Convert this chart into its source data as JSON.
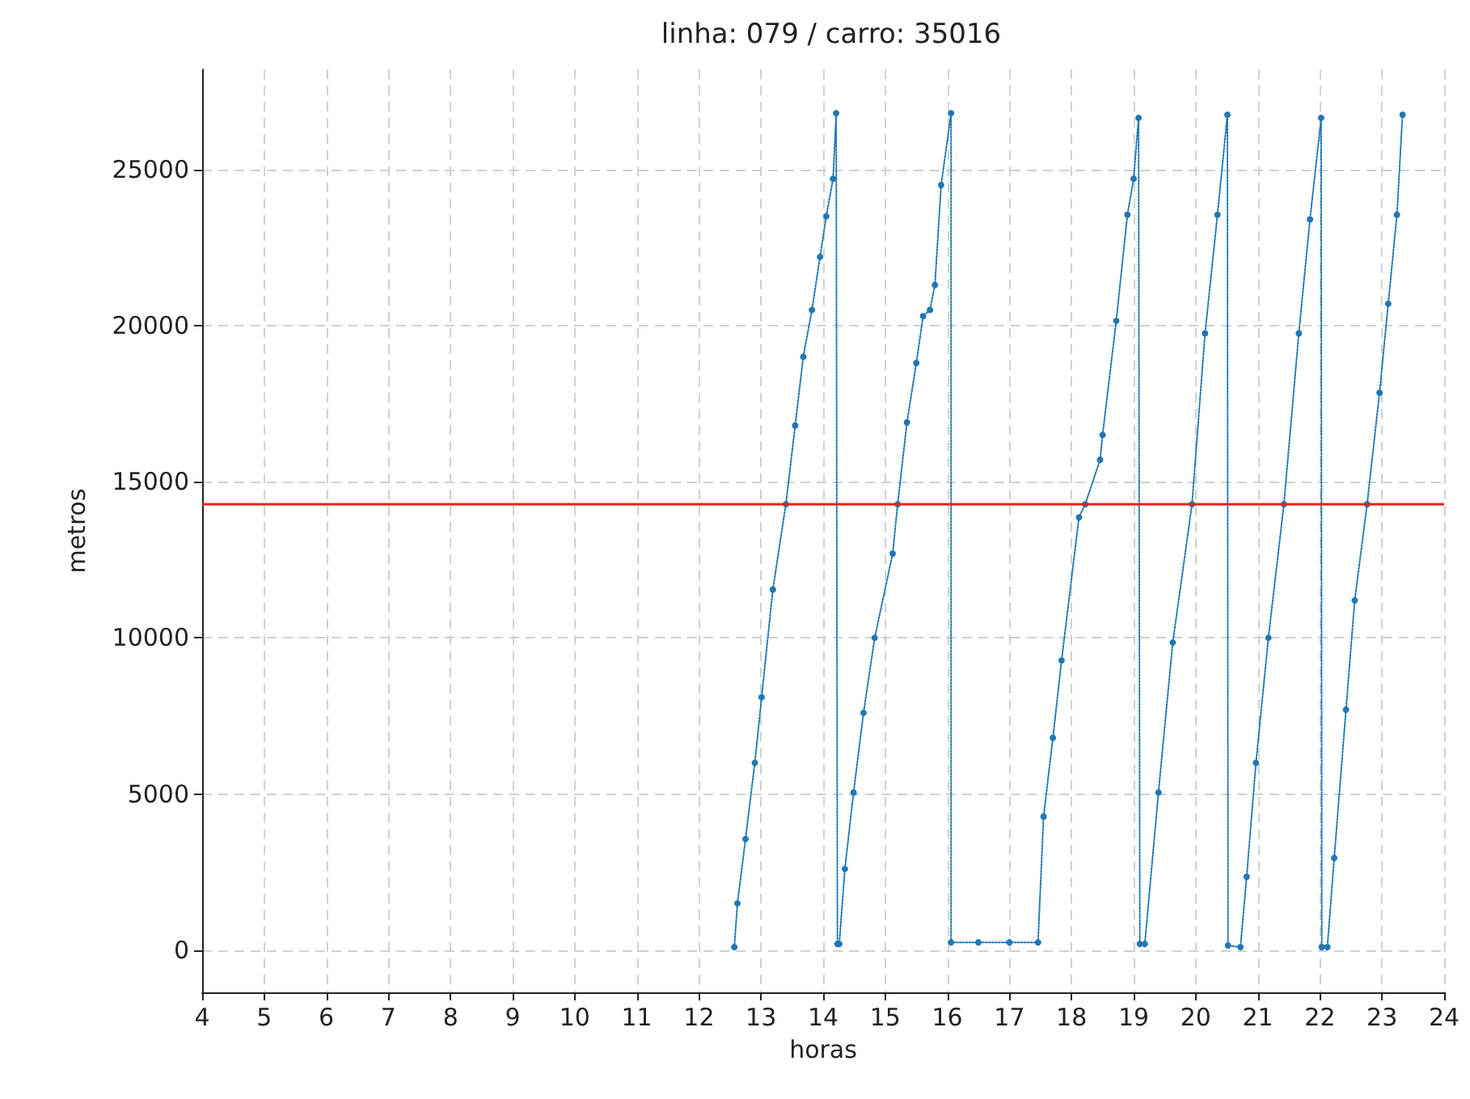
{
  "chart_data": {
    "type": "line",
    "title": "linha: 079 / carro: 35016",
    "xlabel": "horas",
    "ylabel": "metros",
    "x": [
      12.57,
      12.62,
      12.75,
      12.9,
      13.01,
      13.19,
      13.4,
      13.55,
      13.68,
      13.82,
      13.95,
      14.05,
      14.16,
      14.21,
      14.23,
      14.26,
      14.35,
      14.49,
      14.65,
      14.83,
      15.12,
      15.2,
      15.35,
      15.5,
      15.61,
      15.72,
      15.8,
      15.9,
      16.06,
      16.06,
      16.5,
      17.0,
      17.46,
      17.55,
      17.7,
      17.84,
      18.12,
      18.22,
      18.46,
      18.5,
      18.72,
      18.9,
      19.0,
      19.08,
      19.1,
      19.18,
      19.4,
      19.63,
      19.94,
      20.15,
      20.35,
      20.51,
      20.52,
      20.72,
      20.82,
      20.97,
      21.17,
      21.42,
      21.66,
      21.84,
      22.02,
      22.03,
      22.12,
      22.23,
      22.42,
      22.56,
      22.76,
      22.96,
      23.1,
      23.24,
      23.33
    ],
    "values": [
      100,
      1500,
      3560,
      6000,
      8100,
      11550,
      14280,
      16800,
      19000,
      20500,
      22200,
      23500,
      24700,
      26800,
      200,
      200,
      2600,
      5050,
      7600,
      10000,
      12700,
      14280,
      16900,
      18800,
      20300,
      20500,
      21300,
      24500,
      26800,
      250,
      250,
      250,
      250,
      4280,
      6800,
      9280,
      13860,
      14280,
      15700,
      16500,
      20150,
      23550,
      24700,
      26650,
      200,
      200,
      5050,
      9850,
      14280,
      19750,
      23550,
      26750,
      150,
      100,
      2350,
      6000,
      10000,
      14280,
      19750,
      23400,
      26650,
      100,
      100,
      2950,
      7700,
      11200,
      14280,
      17850,
      20700,
      23550,
      26750
    ],
    "color": "#1f77b4",
    "marker": "circle",
    "line_style": "dotted",
    "xlim": [
      4,
      24
    ],
    "xticks": [
      4,
      5,
      6,
      7,
      8,
      9,
      10,
      11,
      12,
      13,
      14,
      15,
      16,
      17,
      18,
      19,
      20,
      21,
      22,
      23,
      24
    ],
    "ylim": [
      -1350,
      28200
    ],
    "yticks": [
      0,
      5000,
      10000,
      15000,
      20000,
      25000
    ],
    "grid": true,
    "ref_lines": [
      {
        "axis": "y",
        "value": 14300,
        "color": "#e8201c",
        "line_style": "solid"
      }
    ]
  }
}
